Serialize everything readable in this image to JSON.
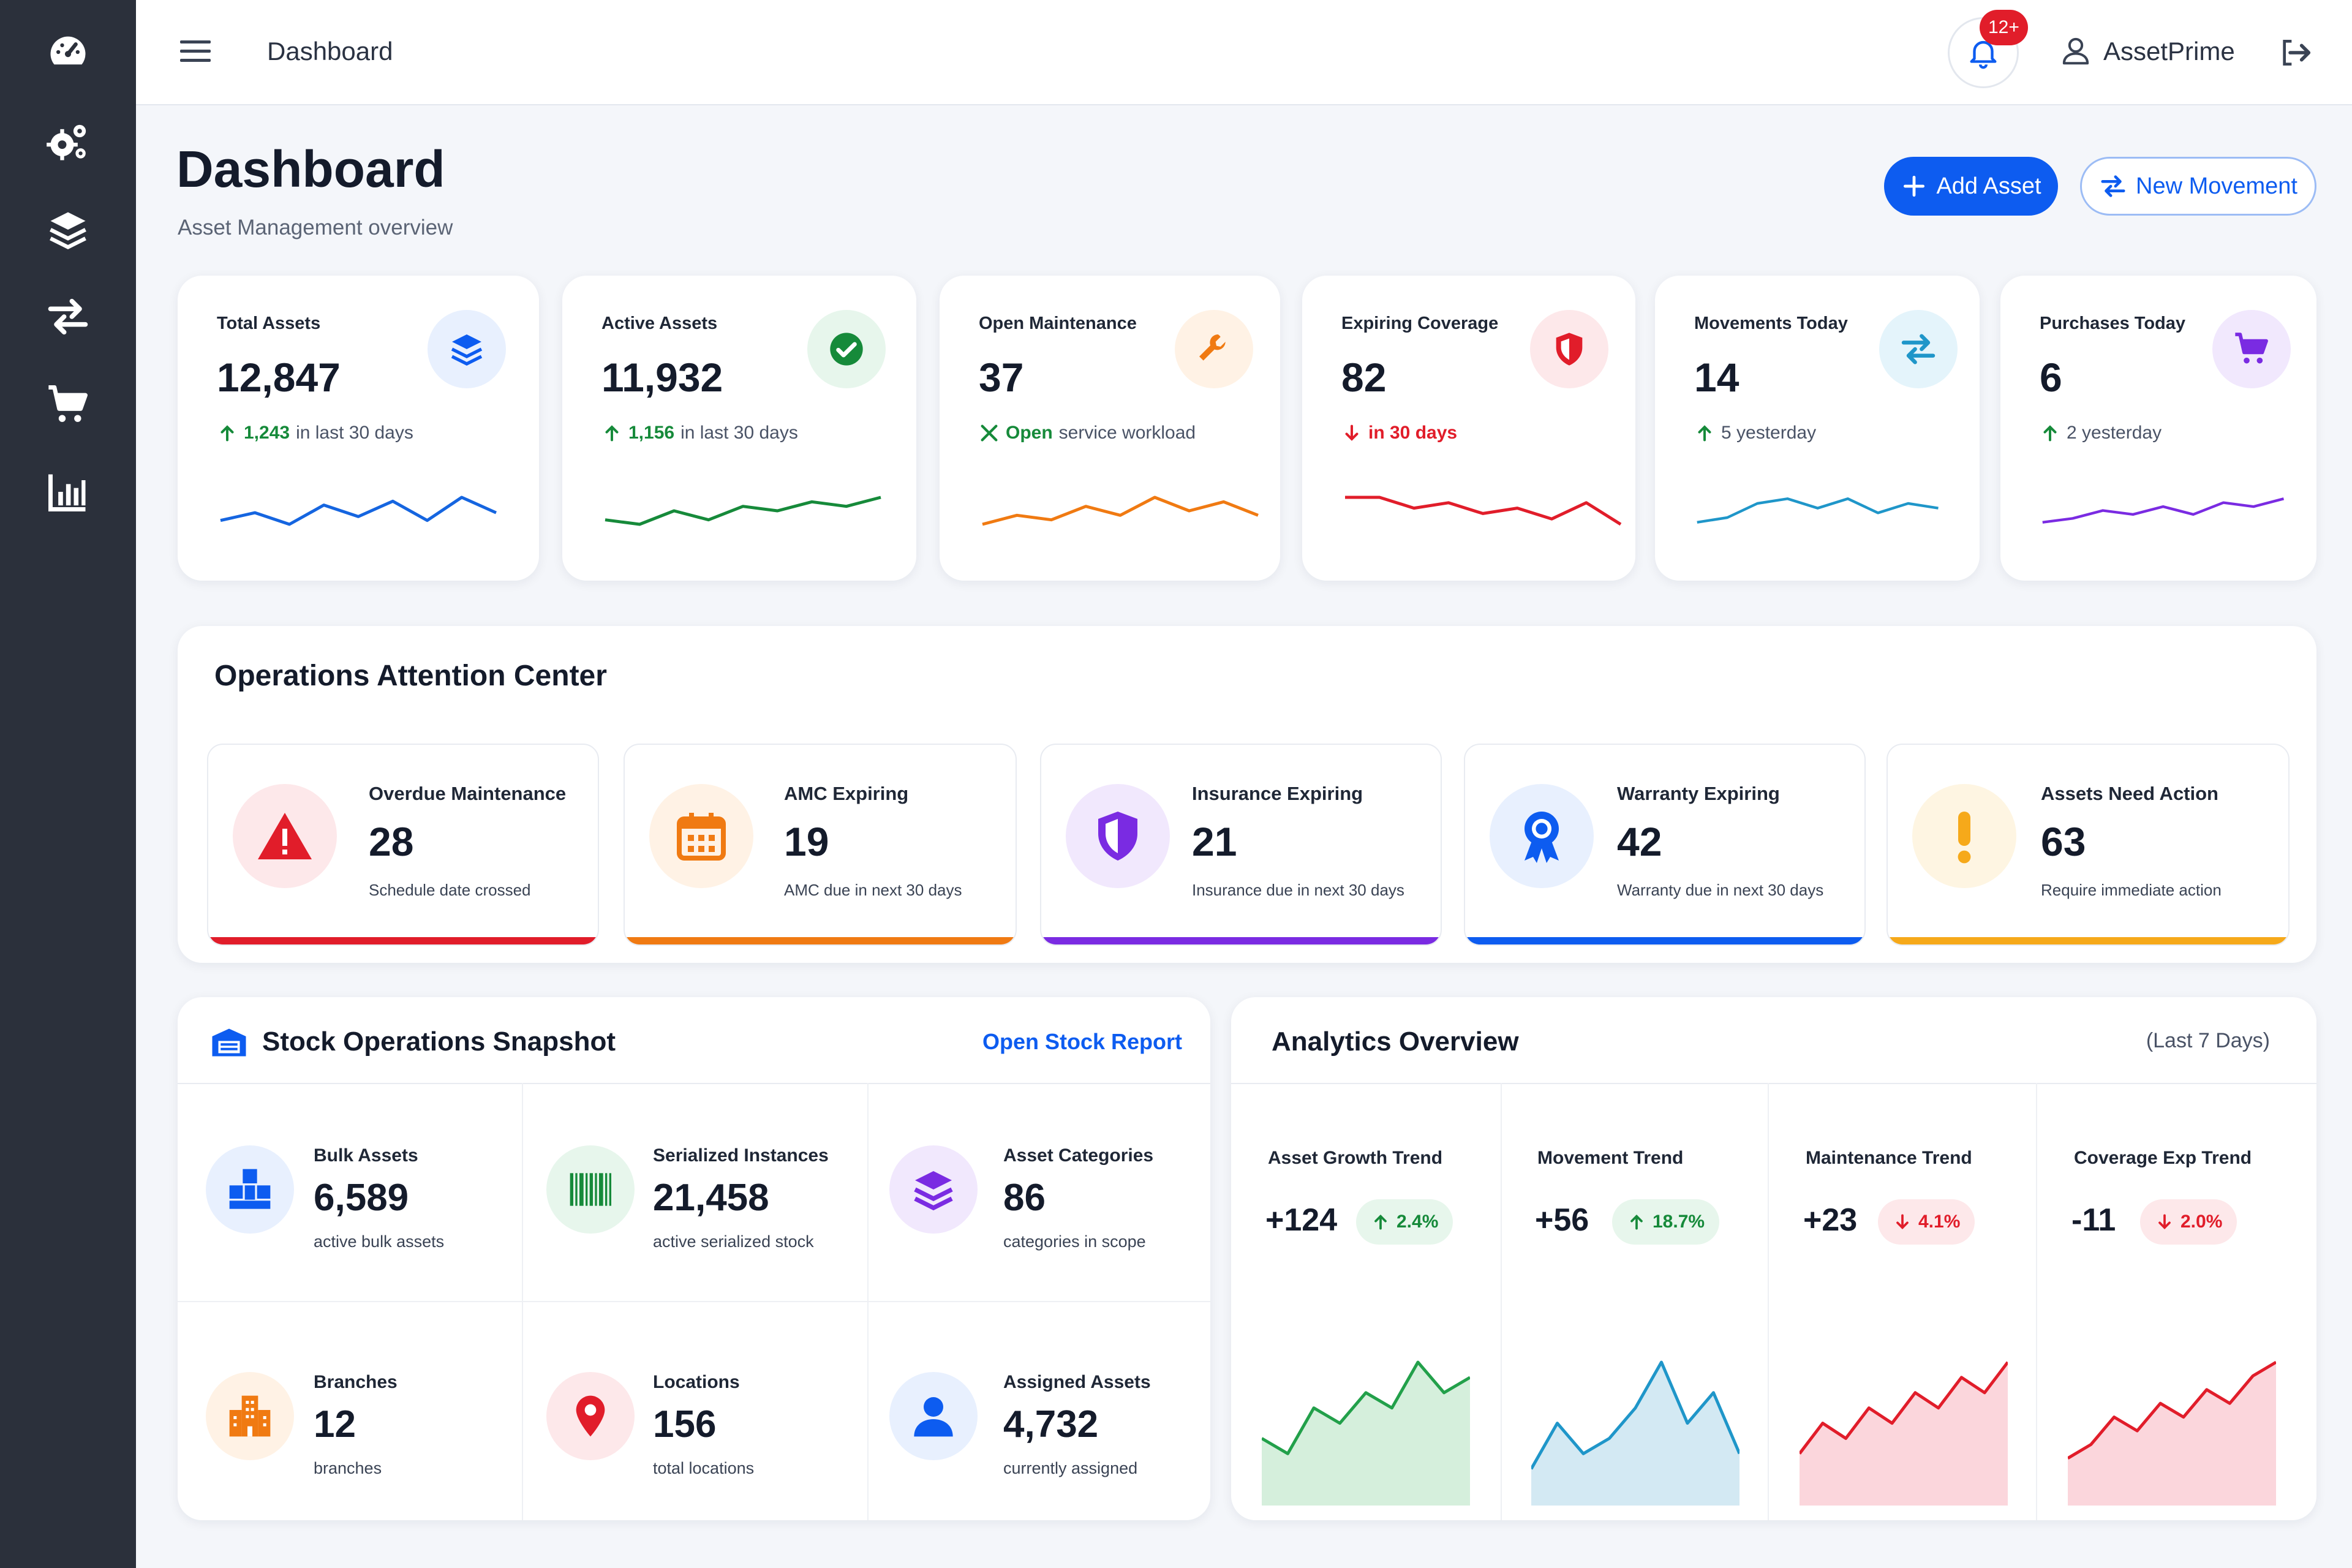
{
  "topbar": {
    "title": "Dashboard",
    "notifications": "12+",
    "user": "AssetPrime"
  },
  "header": {
    "title": "Dashboard",
    "subtitle": "Asset Management overview",
    "add_asset": "Add Asset",
    "new_movement": "New Movement"
  },
  "colors": {
    "primary": "#0d5cf0",
    "green": "#168a3a",
    "red": "#e11d2a",
    "orange": "#f07a12",
    "purple": "#7a2be2",
    "cyan": "#1f96c9",
    "amber": "#f6a91a"
  },
  "sidebar": {
    "icons": [
      "dashboard-gauge-icon",
      "settings-gears-icon",
      "layers-icon",
      "transfer-arrows-icon",
      "cart-icon",
      "bar-chart-icon"
    ]
  },
  "kpis": [
    {
      "label": "Total Assets",
      "value": "12,847",
      "trend_value": "1,243",
      "trend_text": "in last 30 days",
      "icon": "layers-icon",
      "spark": [
        2,
        4,
        1,
        6,
        3,
        7,
        2,
        8,
        4
      ]
    },
    {
      "label": "Active Assets",
      "value": "11,932",
      "trend_value": "1,156",
      "trend_text": "in last 30 days",
      "icon": "check-circle-icon",
      "spark": [
        3,
        2,
        5,
        3,
        6,
        5,
        7,
        6,
        8
      ]
    },
    {
      "label": "Open Maintenance",
      "value": "37",
      "trend_value": "Open",
      "trend_text": "service workload",
      "icon": "wrench-icon",
      "spark": [
        2,
        4,
        3,
        6,
        4,
        8,
        5,
        7,
        4
      ]
    },
    {
      "label": "Expiring Coverage",
      "value": "82",
      "trend_value": "in 30 days",
      "trend_text": "",
      "icon": "shield-icon",
      "spark": [
        8,
        8,
        6,
        7,
        5,
        6,
        4,
        7,
        3
      ]
    },
    {
      "label": "Movements Today",
      "value": "14",
      "trend_value": "5 yesterday",
      "trend_text": "",
      "icon": "transfer-arrows-icon",
      "spark": [
        2,
        3,
        6,
        7,
        5,
        7,
        4,
        6,
        5
      ]
    },
    {
      "label": "Purchases Today",
      "value": "6",
      "trend_value": "2 yesterday",
      "trend_text": "",
      "icon": "cart-icon",
      "spark": [
        2,
        3,
        5,
        4,
        6,
        4,
        7,
        6,
        8
      ]
    }
  ],
  "attention": {
    "title": "Operations Attention Center",
    "items": [
      {
        "label": "Overdue Maintenance",
        "value": "28",
        "sub": "Schedule date crossed",
        "icon": "warning-triangle-icon"
      },
      {
        "label": "AMC Expiring",
        "value": "19",
        "sub": "AMC due in next 30 days",
        "icon": "calendar-icon"
      },
      {
        "label": "Insurance Expiring",
        "value": "21",
        "sub": "Insurance due in next 30 days",
        "icon": "shield-half-icon"
      },
      {
        "label": "Warranty Expiring",
        "value": "42",
        "sub": "Warranty due in next 30 days",
        "icon": "award-ribbon-icon"
      },
      {
        "label": "Assets Need Action",
        "value": "63",
        "sub": "Require immediate action",
        "icon": "exclamation-icon"
      }
    ]
  },
  "stock": {
    "title": "Stock Operations Snapshot",
    "link": "Open Stock Report",
    "items": [
      {
        "label": "Bulk Assets",
        "value": "6,589",
        "sub": "active bulk assets",
        "icon": "boxes-icon"
      },
      {
        "label": "Serialized Instances",
        "value": "21,458",
        "sub": "active serialized stock",
        "icon": "barcode-icon"
      },
      {
        "label": "Asset Categories",
        "value": "86",
        "sub": "categories in scope",
        "icon": "layers-icon"
      },
      {
        "label": "Branches",
        "value": "12",
        "sub": "branches",
        "icon": "building-icon"
      },
      {
        "label": "Locations",
        "value": "156",
        "sub": "total locations",
        "icon": "map-pin-icon"
      },
      {
        "label": "Assigned Assets",
        "value": "4,732",
        "sub": "currently assigned",
        "icon": "user-icon"
      }
    ]
  },
  "analytics": {
    "title": "Analytics Overview",
    "period": "(Last 7 Days)",
    "items": [
      {
        "label": "Asset Growth Trend",
        "value": "+124",
        "change": "2.4%",
        "direction": "up",
        "series": [
          4,
          3,
          6,
          5,
          7,
          6,
          9,
          7,
          8
        ]
      },
      {
        "label": "Movement Trend",
        "value": "+56",
        "change": "18.7%",
        "direction": "up",
        "series": [
          2,
          5,
          3,
          4,
          6,
          9,
          5,
          7,
          3
        ]
      },
      {
        "label": "Maintenance Trend",
        "value": "+23",
        "change": "4.1%",
        "direction": "down",
        "series": [
          3,
          5,
          4,
          6,
          5,
          7,
          6,
          8,
          7,
          9
        ]
      },
      {
        "label": "Coverage Exp Trend",
        "value": "-11",
        "change": "2.0%",
        "direction": "down",
        "series": [
          3,
          4,
          6,
          5,
          7,
          6,
          8,
          7,
          9,
          10
        ]
      }
    ]
  }
}
